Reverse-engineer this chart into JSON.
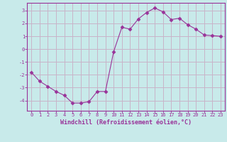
{
  "x": [
    0,
    1,
    2,
    3,
    4,
    5,
    6,
    7,
    8,
    9,
    10,
    11,
    12,
    13,
    14,
    15,
    16,
    17,
    18,
    19,
    20,
    21,
    22,
    23
  ],
  "y": [
    -1.8,
    -2.5,
    -2.9,
    -3.3,
    -3.6,
    -4.2,
    -4.2,
    -4.1,
    -3.3,
    -3.3,
    -0.2,
    1.7,
    1.55,
    2.35,
    2.85,
    3.2,
    2.9,
    2.3,
    2.4,
    1.9,
    1.55,
    1.1,
    1.05,
    1.0
  ],
  "line_color": "#993399",
  "marker": "D",
  "marker_size": 2.5,
  "bg_color": "#c8eaea",
  "grid_color": "#c8b4c8",
  "xlabel": "Windchill (Refroidissement éolien,°C)",
  "xlabel_color": "#993399",
  "tick_color": "#993399",
  "axis_color": "#993399",
  "ylim": [
    -4.8,
    3.6
  ],
  "yticks": [
    -4,
    -3,
    -2,
    -1,
    0,
    1,
    2,
    3
  ],
  "xlim": [
    -0.5,
    23.5
  ],
  "xticks": [
    0,
    1,
    2,
    3,
    4,
    5,
    6,
    7,
    8,
    9,
    10,
    11,
    12,
    13,
    14,
    15,
    16,
    17,
    18,
    19,
    20,
    21,
    22,
    23
  ]
}
